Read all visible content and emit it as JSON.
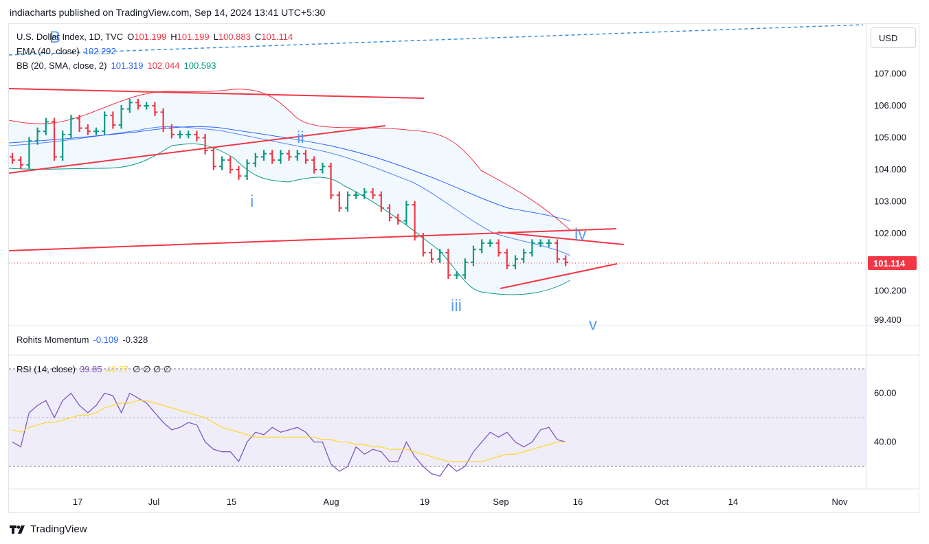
{
  "header": {
    "published": "indiacharts published on TradingView.com, Sep 14, 2024 13:41 UTC+5:30"
  },
  "legend": {
    "symbol": "U.S. Dollar Index, 1D, TVC",
    "o_label": "O",
    "o_value": "101.199",
    "h_label": "H",
    "h_value": "101.199",
    "l_label": "L",
    "l_value": "100.883",
    "c_label": "C",
    "c_value": "101.114",
    "ema_label": "EMA (40, close)",
    "ema_value": "102.292",
    "bb_label": "BB (20, SMA, close, 2)",
    "bb_basis": "101.319",
    "bb_upper": "102.044",
    "bb_lower": "100.593",
    "momentum_label": "Rohits Momentum",
    "momentum_v1": "-0.109",
    "momentum_v2": "-0.328",
    "rsi_label": "RSI (14, close)",
    "rsi_value": "39.85",
    "rsi_ma": "40.27",
    "rsi_extra": "∅ ∅ ∅ ∅"
  },
  "currency_button": "USD",
  "last_price": "101.114",
  "wave_labels": {
    "B": "B",
    "i": "i",
    "ii": "ii",
    "iii": "iii",
    "iv": "iv",
    "v": "v"
  },
  "footer": {
    "brand": "TradingView"
  },
  "colors": {
    "up": "#089981",
    "down": "#f23645",
    "ema": "#2962ff",
    "bb_upper": "#f23645",
    "bb_lower": "#089981",
    "rsi": "#7e57c2",
    "rsi_ma": "#fdd835",
    "wave": "#5b9cf0",
    "trend": "#f23645"
  },
  "chart_data": [
    {
      "type": "candlestick",
      "title": "U.S. Dollar Index, 1D, TVC",
      "y_ticks": [
        "107.000",
        "106.000",
        "105.000",
        "104.000",
        "103.000",
        "102.000",
        "100.200",
        "99.400"
      ],
      "y_tick_values": [
        107.0,
        106.0,
        105.0,
        104.0,
        103.0,
        102.0,
        100.2,
        99.4
      ],
      "x_ticks": [
        "17",
        "Jul",
        "15",
        "Aug",
        "19",
        "Sep",
        "16",
        "Oct",
        "14",
        "Nov"
      ],
      "x_tick_dates": [
        "2024-06-17",
        "2024-07-01",
        "2024-07-15",
        "2024-08-01",
        "2024-08-19",
        "2024-09-01",
        "2024-09-16",
        "2024-10-01",
        "2024-10-14",
        "2024-11-01"
      ],
      "ohlc_close": [
        104.3,
        104.15,
        104.9,
        105.2,
        105.5,
        104.4,
        105.1,
        105.6,
        105.3,
        105.2,
        105.2,
        105.7,
        105.4,
        105.9,
        106.1,
        106.0,
        106.0,
        105.8,
        105.3,
        105.1,
        105.1,
        105.1,
        105.0,
        104.6,
        104.1,
        104.3,
        104.0,
        103.8,
        104.2,
        104.4,
        104.5,
        104.3,
        104.5,
        104.4,
        104.5,
        104.3,
        104.0,
        104.1,
        103.2,
        102.8,
        103.2,
        103.2,
        103.3,
        103.2,
        102.8,
        102.5,
        102.4,
        102.9,
        101.9,
        101.4,
        101.2,
        101.4,
        100.7,
        100.7,
        101.1,
        101.5,
        101.7,
        101.7,
        101.4,
        101.0,
        101.2,
        101.4,
        101.7,
        101.7,
        101.7,
        101.2,
        101.1
      ],
      "ema_40": {
        "name": "EMA",
        "last": 102.292
      },
      "bollinger": {
        "upper_last": 102.044,
        "basis_last": 101.319,
        "lower_last": 100.593
      },
      "last_price": 101.114
    },
    {
      "type": "line",
      "title": "RSI (14, close)",
      "y_ticks": [
        "60.00",
        "40.00"
      ],
      "y_tick_values": [
        60,
        40
      ],
      "bands": [
        70,
        50,
        30
      ],
      "series": [
        {
          "values": [
            40,
            38,
            52,
            55,
            57,
            50,
            57,
            60,
            55,
            52,
            55,
            60,
            59,
            52,
            60,
            58,
            56,
            52,
            48,
            45,
            46,
            48,
            47,
            40,
            37,
            36,
            36,
            32,
            40,
            44,
            43,
            46,
            44,
            45,
            46,
            44,
            40,
            40,
            31,
            28,
            30,
            38,
            35,
            37,
            36,
            32,
            32,
            40,
            34,
            30,
            27,
            26,
            31,
            28,
            30,
            36,
            40,
            44,
            42,
            44,
            40,
            38,
            40,
            45,
            46,
            41,
            40
          ]
        },
        {
          "values": [
            45,
            44,
            46,
            47,
            48,
            48,
            49,
            50,
            51,
            51,
            52,
            54,
            55,
            56,
            56,
            57,
            57,
            56,
            55,
            54,
            53,
            52,
            51,
            50,
            48,
            46,
            45,
            44,
            43,
            42,
            42,
            42,
            42,
            42,
            42,
            42,
            42,
            41,
            41,
            40,
            40,
            39,
            39,
            38,
            38,
            37,
            37,
            37,
            36,
            35,
            34,
            33,
            32,
            32,
            32,
            32,
            32,
            33,
            34,
            35,
            35,
            36,
            37,
            38,
            39,
            40,
            40
          ]
        }
      ]
    }
  ]
}
